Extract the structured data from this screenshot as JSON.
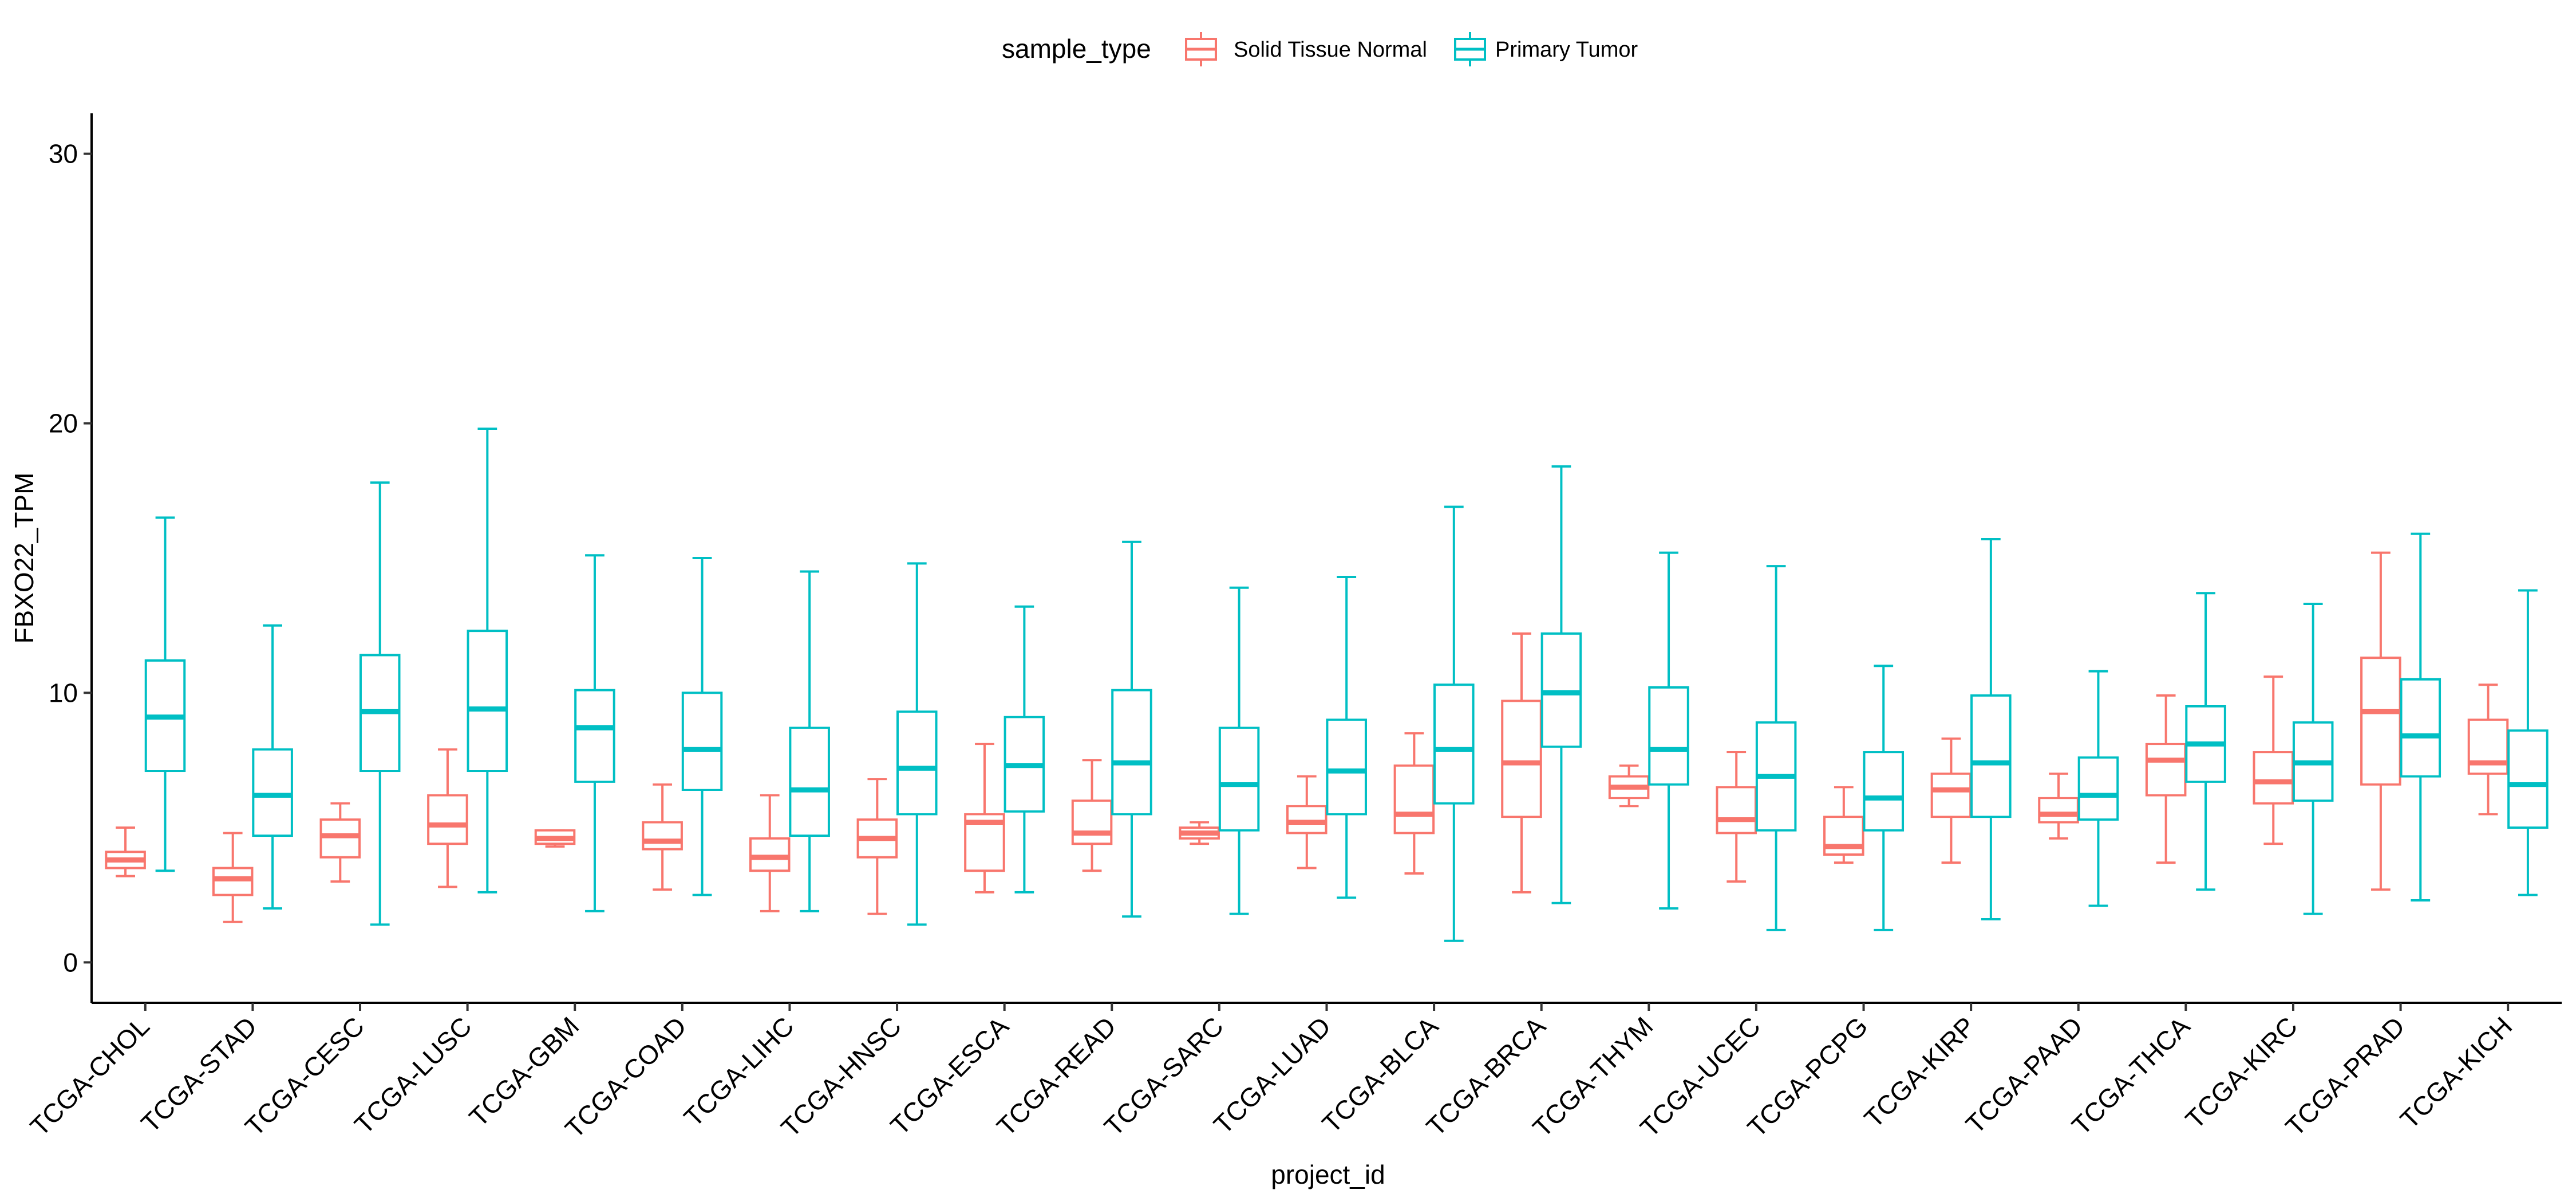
{
  "chart_data": {
    "type": "boxplot",
    "xlabel": "project_id",
    "ylabel": "FBXO22_TPM",
    "ylim": [
      -1.5,
      31.5
    ],
    "yticks": [
      0,
      10,
      20,
      30
    ],
    "grid": false,
    "legend": {
      "title": "sample_type",
      "position": "top",
      "entries": [
        {
          "name": "Solid Tissue Normal",
          "color": "#F8766D"
        },
        {
          "name": "Primary Tumor",
          "color": "#00BFC4"
        }
      ]
    },
    "categories": [
      "TCGA-CHOL",
      "TCGA-STAD",
      "TCGA-CESC",
      "TCGA-LUSC",
      "TCGA-GBM",
      "TCGA-COAD",
      "TCGA-LIHC",
      "TCGA-HNSC",
      "TCGA-ESCA",
      "TCGA-READ",
      "TCGA-SARC",
      "TCGA-LUAD",
      "TCGA-BLCA",
      "TCGA-BRCA",
      "TCGA-THYM",
      "TCGA-UCEC",
      "TCGA-PCPG",
      "TCGA-KIRP",
      "TCGA-PAAD",
      "TCGA-THCA",
      "TCGA-KIRC",
      "TCGA-PRAD",
      "TCGA-KICH"
    ],
    "series": [
      {
        "name": "Solid Tissue Normal",
        "color": "#F8766D",
        "boxes": [
          {
            "min": 3.2,
            "q1": 3.5,
            "median": 3.8,
            "q3": 4.1,
            "max": 5.0
          },
          {
            "min": 1.5,
            "q1": 2.5,
            "median": 3.1,
            "q3": 3.5,
            "max": 4.8
          },
          {
            "min": 3.0,
            "q1": 3.9,
            "median": 4.7,
            "q3": 5.3,
            "max": 5.9
          },
          {
            "min": 2.8,
            "q1": 4.4,
            "median": 5.1,
            "q3": 6.2,
            "max": 7.9
          },
          {
            "min": 4.3,
            "q1": 4.4,
            "median": 4.6,
            "q3": 4.9,
            "max": 4.9
          },
          {
            "min": 2.7,
            "q1": 4.2,
            "median": 4.5,
            "q3": 5.2,
            "max": 6.6
          },
          {
            "min": 1.9,
            "q1": 3.4,
            "median": 3.9,
            "q3": 4.6,
            "max": 6.2
          },
          {
            "min": 1.8,
            "q1": 3.9,
            "median": 4.6,
            "q3": 5.3,
            "max": 6.8
          },
          {
            "min": 2.6,
            "q1": 3.4,
            "median": 5.2,
            "q3": 5.5,
            "max": 8.1
          },
          {
            "min": 3.4,
            "q1": 4.4,
            "median": 4.8,
            "q3": 6.0,
            "max": 7.5
          },
          {
            "min": 4.4,
            "q1": 4.6,
            "median": 4.8,
            "q3": 5.0,
            "max": 5.2
          },
          {
            "min": 3.5,
            "q1": 4.8,
            "median": 5.2,
            "q3": 5.8,
            "max": 6.9
          },
          {
            "min": 3.3,
            "q1": 4.8,
            "median": 5.5,
            "q3": 7.3,
            "max": 8.5
          },
          {
            "min": 2.6,
            "q1": 5.4,
            "median": 7.4,
            "q3": 9.7,
            "max": 12.2
          },
          {
            "min": 5.8,
            "q1": 6.1,
            "median": 6.5,
            "q3": 6.9,
            "max": 7.3
          },
          {
            "min": 3.0,
            "q1": 4.8,
            "median": 5.3,
            "q3": 6.5,
            "max": 7.8
          },
          {
            "min": 3.7,
            "q1": 4.0,
            "median": 4.3,
            "q3": 5.4,
            "max": 6.5
          },
          {
            "min": 3.7,
            "q1": 5.4,
            "median": 6.4,
            "q3": 7.0,
            "max": 8.3
          },
          {
            "min": 4.6,
            "q1": 5.2,
            "median": 5.5,
            "q3": 6.1,
            "max": 7.0
          },
          {
            "min": 3.7,
            "q1": 6.2,
            "median": 7.5,
            "q3": 8.1,
            "max": 9.9
          },
          {
            "min": 4.4,
            "q1": 5.9,
            "median": 6.7,
            "q3": 7.8,
            "max": 10.6
          },
          {
            "min": 2.7,
            "q1": 6.6,
            "median": 9.3,
            "q3": 11.3,
            "max": 15.2
          },
          {
            "min": 5.5,
            "q1": 7.0,
            "median": 7.4,
            "q3": 9.0,
            "max": 10.3
          }
        ]
      },
      {
        "name": "Primary Tumor",
        "color": "#00BFC4",
        "boxes": [
          {
            "min": 3.4,
            "q1": 7.1,
            "median": 9.1,
            "q3": 11.2,
            "max": 16.5
          },
          {
            "min": 2.0,
            "q1": 4.7,
            "median": 6.2,
            "q3": 7.9,
            "max": 12.5
          },
          {
            "min": 1.4,
            "q1": 7.1,
            "median": 9.3,
            "q3": 11.4,
            "max": 17.8
          },
          {
            "min": 2.6,
            "q1": 7.1,
            "median": 9.4,
            "q3": 12.3,
            "max": 19.8
          },
          {
            "min": 1.9,
            "q1": 6.7,
            "median": 8.7,
            "q3": 10.1,
            "max": 15.1
          },
          {
            "min": 2.5,
            "q1": 6.4,
            "median": 7.9,
            "q3": 10.0,
            "max": 15.0
          },
          {
            "min": 1.9,
            "q1": 4.7,
            "median": 6.4,
            "q3": 8.7,
            "max": 14.5
          },
          {
            "min": 1.4,
            "q1": 5.5,
            "median": 7.2,
            "q3": 9.3,
            "max": 14.8
          },
          {
            "min": 2.6,
            "q1": 5.6,
            "median": 7.3,
            "q3": 9.1,
            "max": 13.2
          },
          {
            "min": 1.7,
            "q1": 5.5,
            "median": 7.4,
            "q3": 10.1,
            "max": 15.6
          },
          {
            "min": 1.8,
            "q1": 4.9,
            "median": 6.6,
            "q3": 8.7,
            "max": 13.9
          },
          {
            "min": 2.4,
            "q1": 5.5,
            "median": 7.1,
            "q3": 9.0,
            "max": 14.3
          },
          {
            "min": 0.8,
            "q1": 5.9,
            "median": 7.9,
            "q3": 10.3,
            "max": 16.9
          },
          {
            "min": 2.2,
            "q1": 8.0,
            "median": 10.0,
            "q3": 12.2,
            "max": 18.4
          },
          {
            "min": 2.0,
            "q1": 6.6,
            "median": 7.9,
            "q3": 10.2,
            "max": 15.2
          },
          {
            "min": 1.2,
            "q1": 4.9,
            "median": 6.9,
            "q3": 8.9,
            "max": 14.7
          },
          {
            "min": 1.2,
            "q1": 4.9,
            "median": 6.1,
            "q3": 7.8,
            "max": 11.0
          },
          {
            "min": 1.6,
            "q1": 5.4,
            "median": 7.4,
            "q3": 9.9,
            "max": 15.7
          },
          {
            "min": 2.1,
            "q1": 5.3,
            "median": 6.2,
            "q3": 7.6,
            "max": 10.8
          },
          {
            "min": 2.7,
            "q1": 6.7,
            "median": 8.1,
            "q3": 9.5,
            "max": 13.7
          },
          {
            "min": 1.8,
            "q1": 6.0,
            "median": 7.4,
            "q3": 8.9,
            "max": 13.3
          },
          {
            "min": 2.3,
            "q1": 6.9,
            "median": 8.4,
            "q3": 10.5,
            "max": 15.9
          },
          {
            "min": 2.5,
            "q1": 5.0,
            "median": 6.6,
            "q3": 8.6,
            "max": 13.8
          }
        ]
      }
    ]
  }
}
